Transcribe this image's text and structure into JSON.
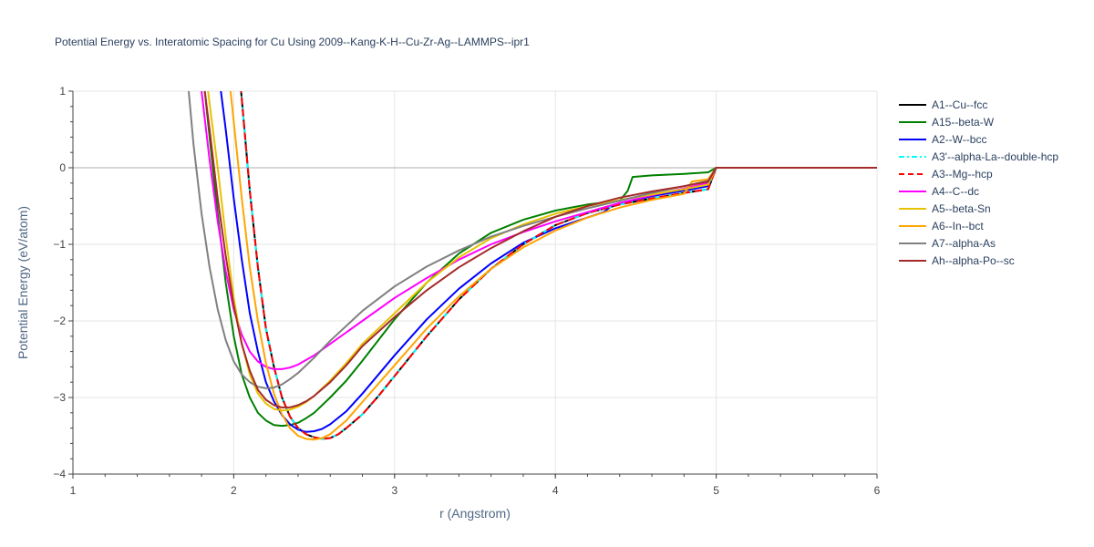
{
  "chart_data": {
    "type": "line",
    "title": "Potential Energy vs. Interatomic Spacing for Cu Using 2009--Kang-K-H--Cu-Zr-Ag--LAMMPS--ipr1",
    "xlabel": "r (Angstrom)",
    "ylabel": "Potential Energy (eV/atom)",
    "xlim": [
      1,
      6
    ],
    "ylim": [
      -4,
      1
    ],
    "xticks": [
      "1",
      "2",
      "3",
      "4",
      "5",
      "6"
    ],
    "yticks": [
      "1",
      "0",
      "−1",
      "−2",
      "−3",
      "−4"
    ],
    "grid": true,
    "legend_position": "right",
    "series": [
      {
        "name": "A1--Cu--fcc",
        "color": "#000000",
        "dash": "solid",
        "x": [
          2.0,
          2.05,
          2.1,
          2.15,
          2.2,
          2.25,
          2.3,
          2.35,
          2.4,
          2.45,
          2.5,
          2.55,
          2.6,
          2.65,
          2.7,
          2.8,
          2.9,
          3.0,
          3.2,
          3.4,
          3.6,
          3.8,
          4.0,
          4.2,
          4.4,
          4.6,
          4.8,
          4.95,
          5.0,
          6.0
        ],
        "y": [
          2.0,
          0.9,
          -0.3,
          -1.3,
          -2.1,
          -2.6,
          -3.0,
          -3.25,
          -3.4,
          -3.48,
          -3.52,
          -3.54,
          -3.53,
          -3.48,
          -3.4,
          -3.22,
          -2.98,
          -2.72,
          -2.2,
          -1.72,
          -1.32,
          -1.0,
          -0.75,
          -0.59,
          -0.48,
          -0.4,
          -0.33,
          -0.28,
          0.0,
          0.0
        ]
      },
      {
        "name": "A15--beta-W",
        "color": "#008000",
        "dash": "solid",
        "x": [
          1.82,
          1.85,
          1.9,
          1.95,
          2.0,
          2.05,
          2.1,
          2.15,
          2.2,
          2.25,
          2.3,
          2.35,
          2.4,
          2.45,
          2.5,
          2.6,
          2.7,
          2.8,
          3.0,
          3.2,
          3.4,
          3.6,
          3.8,
          4.0,
          4.2,
          4.4,
          4.45,
          4.48,
          4.6,
          4.8,
          4.95,
          5.0,
          6.0
        ],
        "y": [
          1.0,
          0.4,
          -0.6,
          -1.5,
          -2.2,
          -2.7,
          -3.0,
          -3.2,
          -3.3,
          -3.36,
          -3.37,
          -3.36,
          -3.33,
          -3.27,
          -3.2,
          -3.0,
          -2.78,
          -2.52,
          -1.98,
          -1.5,
          -1.12,
          -0.85,
          -0.68,
          -0.56,
          -0.48,
          -0.43,
          -0.3,
          -0.12,
          -0.1,
          -0.08,
          -0.06,
          0.0,
          0.0
        ]
      },
      {
        "name": "A2--W--bcc",
        "color": "#0000ff",
        "dash": "solid",
        "x": [
          1.92,
          1.95,
          2.0,
          2.05,
          2.1,
          2.15,
          2.2,
          2.25,
          2.3,
          2.35,
          2.4,
          2.45,
          2.5,
          2.55,
          2.6,
          2.7,
          2.8,
          3.0,
          3.2,
          3.4,
          3.6,
          3.8,
          4.0,
          4.2,
          4.3,
          4.35,
          4.4,
          4.6,
          4.8,
          4.95,
          5.0,
          6.0
        ],
        "y": [
          1.0,
          0.5,
          -0.4,
          -1.2,
          -1.9,
          -2.4,
          -2.8,
          -3.05,
          -3.23,
          -3.35,
          -3.42,
          -3.45,
          -3.44,
          -3.41,
          -3.35,
          -3.18,
          -2.95,
          -2.45,
          -1.98,
          -1.58,
          -1.25,
          -0.98,
          -0.79,
          -0.65,
          -0.58,
          -0.5,
          -0.46,
          -0.37,
          -0.3,
          -0.24,
          0.0,
          0.0
        ]
      },
      {
        "name": "A3'--alpha-La--double-hcp",
        "color": "#00ffff",
        "dash": "dashdot",
        "x": [
          2.0,
          2.05,
          2.1,
          2.15,
          2.2,
          2.25,
          2.3,
          2.35,
          2.4,
          2.45,
          2.5,
          2.55,
          2.6,
          2.65,
          2.7,
          2.8,
          2.9,
          3.0,
          3.2,
          3.4,
          3.6,
          3.8,
          4.0,
          4.2,
          4.4,
          4.6,
          4.8,
          4.95,
          5.0,
          6.0
        ],
        "y": [
          2.0,
          0.9,
          -0.3,
          -1.3,
          -2.1,
          -2.6,
          -3.0,
          -3.25,
          -3.4,
          -3.48,
          -3.52,
          -3.54,
          -3.53,
          -3.48,
          -3.4,
          -3.22,
          -2.98,
          -2.72,
          -2.2,
          -1.72,
          -1.32,
          -1.0,
          -0.75,
          -0.59,
          -0.48,
          -0.4,
          -0.33,
          -0.28,
          0.0,
          0.0
        ]
      },
      {
        "name": "A3--Mg--hcp",
        "color": "#ff0000",
        "dash": "dash",
        "x": [
          2.0,
          2.05,
          2.1,
          2.15,
          2.2,
          2.25,
          2.3,
          2.35,
          2.4,
          2.45,
          2.5,
          2.55,
          2.6,
          2.65,
          2.7,
          2.8,
          2.9,
          3.0,
          3.2,
          3.4,
          3.6,
          3.8,
          4.0,
          4.2,
          4.4,
          4.6,
          4.8,
          4.95,
          5.0,
          6.0
        ],
        "y": [
          2.0,
          0.9,
          -0.3,
          -1.3,
          -2.1,
          -2.6,
          -3.0,
          -3.25,
          -3.4,
          -3.48,
          -3.52,
          -3.54,
          -3.53,
          -3.48,
          -3.4,
          -3.22,
          -2.98,
          -2.72,
          -2.2,
          -1.72,
          -1.32,
          -1.0,
          -0.75,
          -0.59,
          -0.48,
          -0.4,
          -0.33,
          -0.28,
          0.0,
          0.0
        ]
      },
      {
        "name": "A4--C--dc",
        "color": "#ff00ff",
        "dash": "solid",
        "x": [
          1.8,
          1.85,
          1.9,
          1.95,
          2.0,
          2.05,
          2.1,
          2.15,
          2.2,
          2.25,
          2.3,
          2.35,
          2.4,
          2.5,
          2.6,
          2.8,
          3.0,
          3.2,
          3.4,
          3.6,
          3.8,
          4.0,
          4.2,
          4.4,
          4.6,
          4.8,
          4.95,
          5.0,
          6.0
        ],
        "y": [
          1.0,
          0.1,
          -0.7,
          -1.35,
          -1.85,
          -2.18,
          -2.4,
          -2.53,
          -2.6,
          -2.63,
          -2.63,
          -2.61,
          -2.57,
          -2.45,
          -2.3,
          -2.0,
          -1.7,
          -1.44,
          -1.2,
          -1.0,
          -0.84,
          -0.7,
          -0.58,
          -0.46,
          -0.36,
          -0.27,
          -0.2,
          0.0,
          0.0
        ]
      },
      {
        "name": "A5--beta-Sn",
        "color": "#e6c200",
        "dash": "solid",
        "x": [
          1.84,
          1.9,
          1.95,
          2.0,
          2.05,
          2.1,
          2.15,
          2.2,
          2.25,
          2.3,
          2.35,
          2.4,
          2.45,
          2.5,
          2.6,
          2.7,
          2.8,
          3.0,
          3.2,
          3.4,
          3.6,
          3.8,
          4.0,
          4.2,
          4.4,
          4.6,
          4.8,
          4.95,
          5.0,
          6.0
        ],
        "y": [
          1.0,
          0.0,
          -0.9,
          -1.7,
          -2.3,
          -2.7,
          -2.95,
          -3.08,
          -3.15,
          -3.17,
          -3.16,
          -3.12,
          -3.06,
          -2.98,
          -2.78,
          -2.55,
          -2.3,
          -1.9,
          -1.5,
          -1.17,
          -0.92,
          -0.74,
          -0.6,
          -0.5,
          -0.42,
          -0.35,
          -0.28,
          -0.22,
          0.0,
          0.0
        ]
      },
      {
        "name": "A6--In--bct",
        "color": "#ffa500",
        "dash": "solid",
        "x": [
          1.98,
          2.0,
          2.05,
          2.1,
          2.15,
          2.2,
          2.25,
          2.3,
          2.35,
          2.4,
          2.45,
          2.5,
          2.55,
          2.6,
          2.7,
          2.8,
          3.0,
          3.2,
          3.4,
          3.6,
          3.8,
          4.0,
          4.2,
          4.4,
          4.6,
          4.8,
          4.85,
          4.95,
          5.0,
          6.0
        ],
        "y": [
          1.0,
          0.6,
          -0.4,
          -1.3,
          -2.0,
          -2.55,
          -2.95,
          -3.22,
          -3.4,
          -3.5,
          -3.54,
          -3.55,
          -3.53,
          -3.48,
          -3.3,
          -3.06,
          -2.58,
          -2.1,
          -1.68,
          -1.32,
          -1.04,
          -0.82,
          -0.65,
          -0.52,
          -0.42,
          -0.34,
          -0.18,
          -0.15,
          0.0,
          0.0
        ]
      },
      {
        "name": "A7--alpha-As",
        "color": "#808080",
        "dash": "solid",
        "x": [
          1.72,
          1.75,
          1.8,
          1.85,
          1.9,
          1.95,
          2.0,
          2.05,
          2.1,
          2.15,
          2.2,
          2.25,
          2.3,
          2.35,
          2.4,
          2.5,
          2.6,
          2.8,
          3.0,
          3.2,
          3.4,
          3.6,
          3.8,
          4.0,
          4.2,
          4.4,
          4.6,
          4.8,
          4.95,
          5.0,
          6.0
        ],
        "y": [
          1.0,
          0.3,
          -0.6,
          -1.3,
          -1.85,
          -2.25,
          -2.53,
          -2.7,
          -2.8,
          -2.86,
          -2.88,
          -2.87,
          -2.83,
          -2.76,
          -2.68,
          -2.48,
          -2.26,
          -1.87,
          -1.55,
          -1.29,
          -1.08,
          -0.9,
          -0.76,
          -0.64,
          -0.53,
          -0.43,
          -0.33,
          -0.24,
          -0.17,
          0.0,
          0.0
        ]
      },
      {
        "name": "Ah--alpha-Po--sc",
        "color": "#a52a2a",
        "dash": "solid",
        "x": [
          1.82,
          1.85,
          1.9,
          1.95,
          2.0,
          2.05,
          2.1,
          2.15,
          2.2,
          2.25,
          2.3,
          2.35,
          2.4,
          2.45,
          2.5,
          2.6,
          2.7,
          2.8,
          3.0,
          3.2,
          3.4,
          3.6,
          3.8,
          4.0,
          4.2,
          4.4,
          4.6,
          4.8,
          4.95,
          5.0,
          6.0
        ],
        "y": [
          1.0,
          0.5,
          -0.4,
          -1.15,
          -1.8,
          -2.3,
          -2.65,
          -2.9,
          -3.03,
          -3.1,
          -3.13,
          -3.13,
          -3.1,
          -3.05,
          -2.98,
          -2.8,
          -2.58,
          -2.33,
          -1.95,
          -1.6,
          -1.3,
          -1.05,
          -0.83,
          -0.64,
          -0.5,
          -0.39,
          -0.31,
          -0.24,
          -0.18,
          0.0,
          0.0
        ]
      }
    ]
  }
}
